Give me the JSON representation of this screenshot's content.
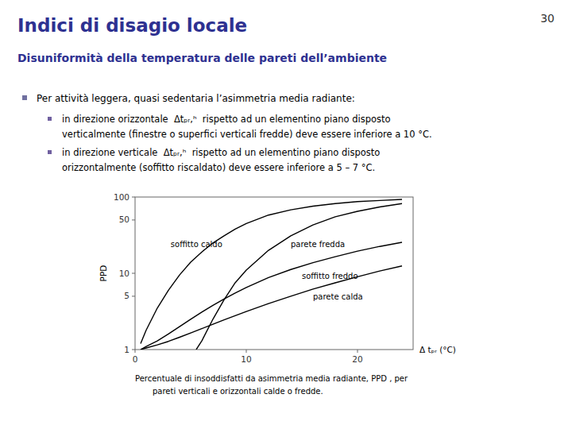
{
  "chart_data": {
    "type": "line",
    "title": "Indici di disagio locale",
    "subtitle": "Disuniformità della temperatura delle pareti dell’ambiente",
    "page_number": "30",
    "title_color": "#2e3191",
    "subtitle_color": "#2e3191",
    "notes": {
      "main": "Per attività leggera, quasi sedentaria l’asimmetria media radiante:",
      "sub": [
        [
          "in direzione orizzontale  Δtₚᵣ,ʰ  rispetto ad un elementino piano disposto",
          "verticalmente (finestre o superfici verticali fredde) deve essere inferiore a 10 °C."
        ],
        [
          "in direzione verticale  Δtₚᵣ,ʰ  rispetto ad un elementino piano disposto",
          "orizzontalmente (soffitto riscaldato) deve essere inferiore a 5 – 7 °C."
        ]
      ]
    },
    "x_label": "Δ tₚᵣ (°C)",
    "y_label": "PPD",
    "caption": [
      "Percentuale di insoddisfatti da asimmetria media radiante, PPD , per",
      "pareti verticali e orizzontali calde o fredde."
    ],
    "log": "y",
    "grid": false,
    "xlim": [
      0,
      25
    ],
    "ylim": [
      1,
      100
    ],
    "xticks": [
      0,
      10,
      20
    ],
    "yticks": [
      1,
      5,
      10,
      50,
      100
    ],
    "series": [
      {
        "color": "#000000",
        "x": [
          0.5,
          1,
          2,
          3,
          4,
          5,
          6,
          7,
          8,
          9,
          10,
          12,
          14,
          16,
          18,
          20,
          22,
          24
        ],
        "values": [
          1.2,
          1.8,
          3.5,
          6.0,
          9.5,
          14.0,
          19.0,
          25.0,
          31.0,
          38.0,
          45.0,
          58.0,
          68.0,
          76.0,
          82.0,
          87.0,
          90.0,
          93.0
        ]
      },
      {
        "color": "#000000",
        "x": [
          5.5,
          6,
          7,
          8,
          9,
          10,
          12,
          14,
          16,
          18,
          20,
          22,
          24
        ],
        "values": [
          1.0,
          1.3,
          2.5,
          4.5,
          7.5,
          11.0,
          20.0,
          31.0,
          43.0,
          55.0,
          65.0,
          74.0,
          82.0
        ]
      },
      {
        "color": "#000000",
        "x": [
          0.5,
          1,
          2,
          3,
          4,
          5,
          6,
          7,
          8,
          9,
          10,
          12,
          14,
          16,
          18,
          20,
          22,
          24
        ],
        "values": [
          1.0,
          1.1,
          1.3,
          1.6,
          2.0,
          2.5,
          3.1,
          3.8,
          4.6,
          5.5,
          6.5,
          8.8,
          11.2,
          13.8,
          16.5,
          19.5,
          22.5,
          25.5
        ]
      },
      {
        "color": "#000000",
        "x": [
          0.5,
          1,
          2,
          3,
          4,
          5,
          6,
          7,
          8,
          9,
          10,
          12,
          14,
          16,
          18,
          20,
          22,
          24
        ],
        "values": [
          1.0,
          1.05,
          1.15,
          1.28,
          1.45,
          1.65,
          1.88,
          2.15,
          2.45,
          2.78,
          3.15,
          4.0,
          5.0,
          6.2,
          7.5,
          9.0,
          10.7,
          12.5
        ]
      }
    ],
    "annotations": [
      {
        "text": "soffitto caldo",
        "x": 3.2,
        "y": 22
      },
      {
        "text": "parete fredda",
        "x": 14.0,
        "y": 22
      },
      {
        "text": "soffitto freddo",
        "x": 15.0,
        "y": 8.5
      },
      {
        "text": "parete calda",
        "x": 16.0,
        "y": 4.5
      }
    ]
  }
}
